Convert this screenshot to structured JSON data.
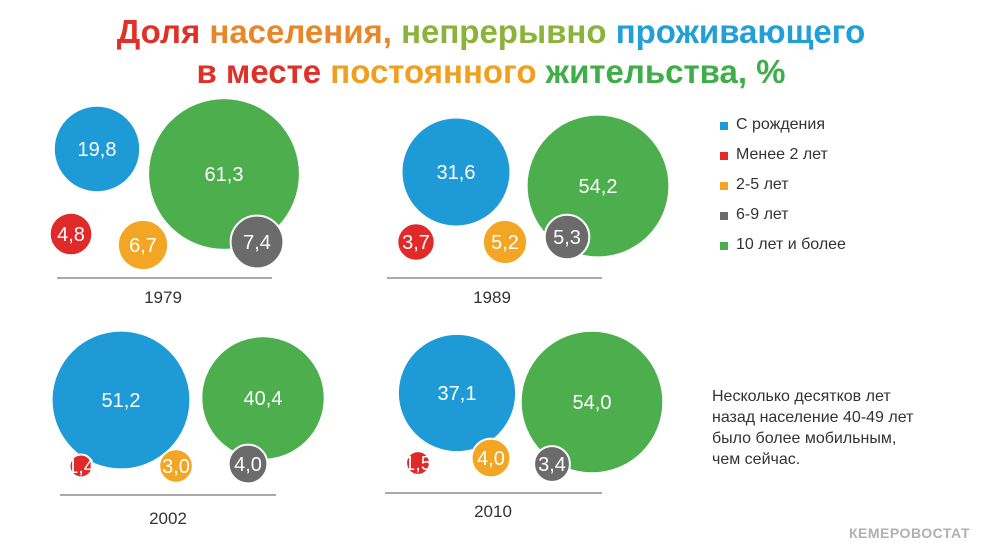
{
  "title_line1": [
    {
      "text": "Доля ",
      "color": "#e0302a"
    },
    {
      "text": "населения, ",
      "color": "#e8862a"
    },
    {
      "text": "непрерывно ",
      "color": "#8ab33a"
    },
    {
      "text": "проживающего",
      "color": "#22a0d6"
    }
  ],
  "title_line2": [
    {
      "text": "в месте ",
      "color": "#e0302a"
    },
    {
      "text": "постоянного ",
      "color": "#f0a020"
    },
    {
      "text": "жительства, %",
      "color": "#3fae49"
    }
  ],
  "legend": [
    {
      "label": "С рождения",
      "color": "#1e9bd7"
    },
    {
      "label": "Менее 2 лет",
      "color": "#e02a2a"
    },
    {
      "label": "2-5 лет",
      "color": "#f2a623"
    },
    {
      "label": "6-9 лет",
      "color": "#6b6b6b"
    },
    {
      "label": "10 лет и более",
      "color": "#4cae4c"
    }
  ],
  "chart_data": [
    {
      "type": "bubble",
      "year": "1979",
      "categories": [
        "С рождения",
        "Менее 2 лет",
        "2-5 лет",
        "6-9 лет",
        "10 лет и более"
      ],
      "values": [
        19.8,
        4.8,
        6.7,
        7.4,
        61.3
      ],
      "labels": [
        "19,8",
        "4,8",
        "6,7",
        "7,4",
        "61,3"
      ]
    },
    {
      "type": "bubble",
      "year": "1989",
      "categories": [
        "С рождения",
        "Менее 2 лет",
        "2-5 лет",
        "6-9 лет",
        "10 лет и более"
      ],
      "values": [
        31.6,
        3.7,
        5.2,
        5.3,
        54.2
      ],
      "labels": [
        "31,6",
        "3,7",
        "5,2",
        "5,3",
        "54,2"
      ]
    },
    {
      "type": "bubble",
      "year": "2002",
      "categories": [
        "С рождения",
        "Менее 2 лет",
        "2-5 лет",
        "6-9 лет",
        "10 лет и более"
      ],
      "values": [
        51.2,
        1.4,
        3.0,
        4.0,
        40.4
      ],
      "labels": [
        "51,2",
        "1,4",
        "3,0",
        "4,0",
        "40,4"
      ]
    },
    {
      "type": "bubble",
      "year": "2010",
      "categories": [
        "С рождения",
        "Менее 2 лет",
        "2-5 лет",
        "6-9 лет",
        "10 лет и более"
      ],
      "values": [
        37.1,
        1.5,
        4.0,
        3.4,
        54.0
      ],
      "labels": [
        "37,1",
        "1,5",
        "4,0",
        "3,4",
        "54,0"
      ]
    }
  ],
  "note_lines": [
    "Несколько десятков лет",
    "назад население 40-49 лет",
    "было более мобильным,",
    "чем сейчас."
  ],
  "source": "КЕМЕРОВОСТАТ"
}
